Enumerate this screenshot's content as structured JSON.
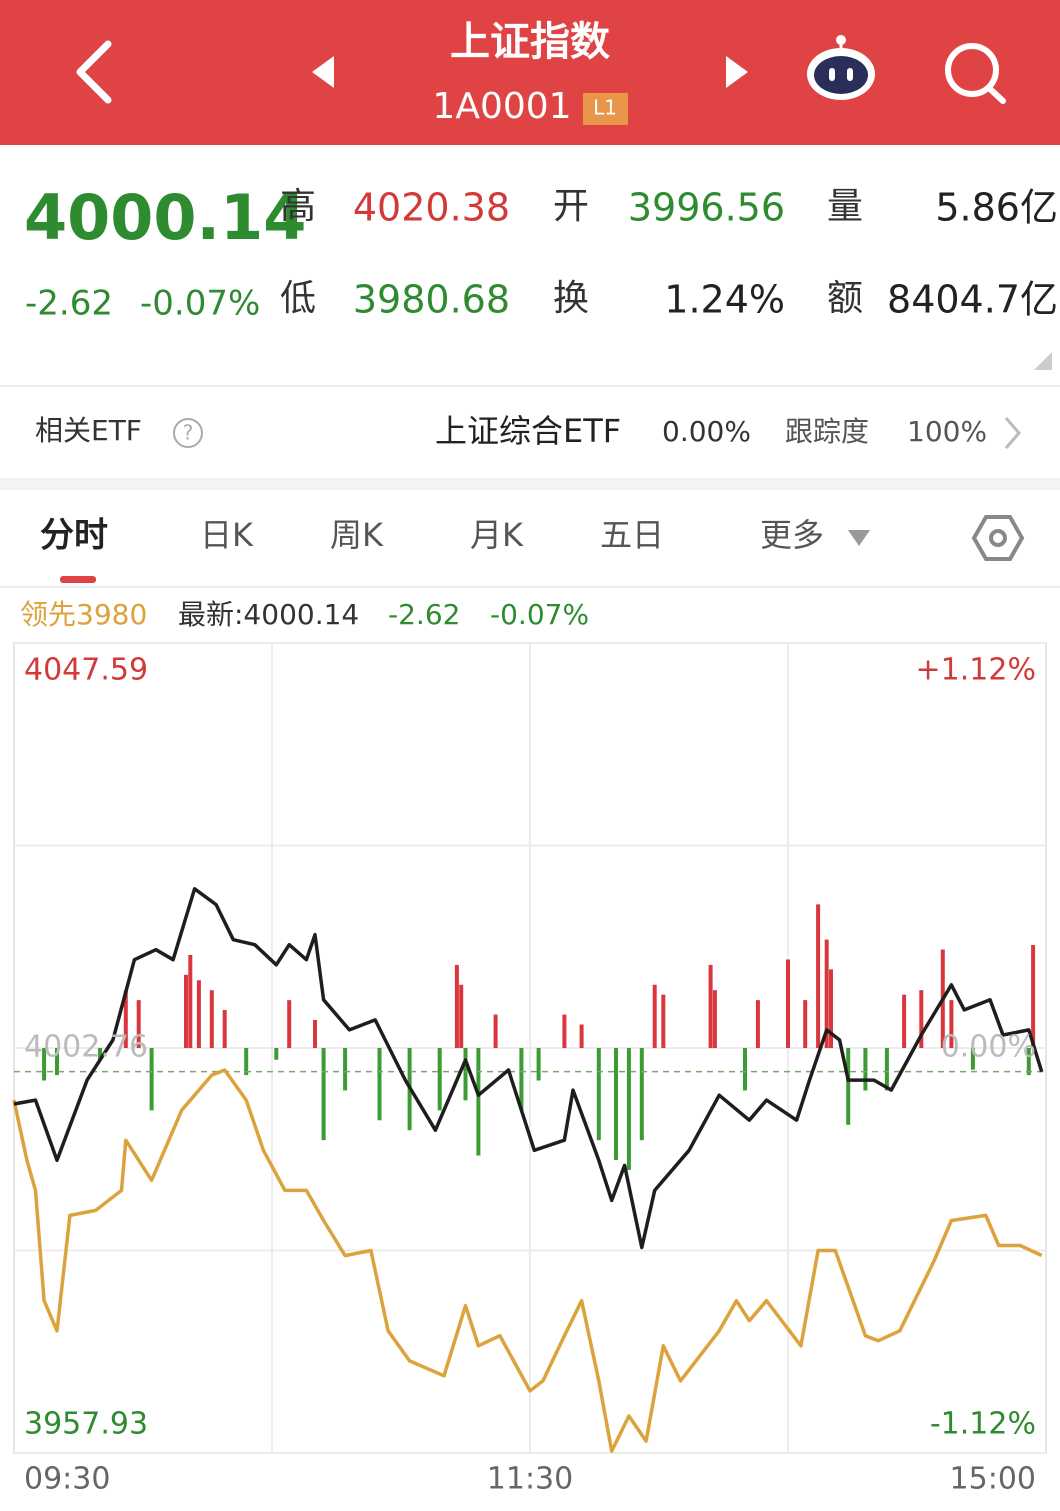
{
  "header": {
    "title": "上证指数",
    "code": "1A0001",
    "badge": "L1"
  },
  "quote": {
    "price": "4000.14",
    "change": "-2.62",
    "change_pct": "-0.07%",
    "fields": [
      {
        "label": "高",
        "value": "4020.38"
      },
      {
        "label": "开",
        "value": "3996.56"
      },
      {
        "label": "量",
        "value": "5.86亿"
      },
      {
        "label": "低",
        "value": "3980.68"
      },
      {
        "label": "换",
        "value": "1.24%"
      },
      {
        "label": "额",
        "value": "8404.7亿"
      }
    ]
  },
  "etf": {
    "label": "相关ETF",
    "help": "?",
    "name": "上证综合ETF",
    "pct": "0.00%",
    "track_label": "跟踪度",
    "track": "100%"
  },
  "tabs": [
    "分时",
    "日K",
    "周K",
    "月K",
    "五日",
    "更多"
  ],
  "chart_data": {
    "type": "line",
    "legend": [
      "领先3980",
      "最新:4000.14",
      "-2.62",
      "-0.07%"
    ],
    "xlim": [
      0,
      240
    ],
    "xticks": [
      {
        "value": 0,
        "label": "09:30"
      },
      {
        "value": 120,
        "label": "11:30"
      },
      {
        "value": 240,
        "label": "15:00"
      }
    ],
    "xgrid": [
      60,
      120,
      180
    ],
    "ylim": [
      3957.93,
      4047.59
    ],
    "yticks": [
      4047.59,
      4002.76,
      3957.93
    ],
    "y2lim": [
      -1.12,
      1.12
    ],
    "y2ticks": [
      {
        "value": 1.12,
        "label": "+1.12%"
      },
      {
        "value": 0,
        "label": "0.00%"
      },
      {
        "value": -1.12,
        "label": "-1.12%"
      }
    ],
    "series": [
      {
        "color": "#1e1e1e",
        "x": [
          0,
          5,
          10,
          17,
          23,
          28,
          33,
          37,
          42,
          47,
          51,
          56,
          61,
          64,
          68,
          70,
          72,
          78,
          84,
          91,
          98,
          105,
          108,
          115,
          121,
          128,
          130,
          136,
          139,
          142,
          146,
          149,
          157,
          164,
          171,
          175,
          182,
          185,
          189,
          192,
          194,
          200,
          204,
          211,
          218,
          221,
          227,
          230,
          236,
          239
        ],
        "values": [
          3996.56,
          3996.99,
          3990.33,
          3999.21,
          4003.65,
          4012.53,
          4013.64,
          4012.53,
          4020.38,
          4018.63,
          4014.75,
          4014.19,
          4011.97,
          4014.19,
          4012.53,
          4015.3,
          4008.09,
          4004.76,
          4005.87,
          3999.21,
          3993.66,
          4001.43,
          3997.54,
          4000.32,
          3991.44,
          3992.55,
          3998.1,
          3990.33,
          3985.89,
          3989.77,
          3980.68,
          3987.0,
          3991.44,
          3997.54,
          3994.77,
          3996.99,
          3994.77,
          3999.21,
          4004.76,
          4003.65,
          3999.21,
          3999.21,
          3998.1,
          4004.2,
          4009.75,
          4006.98,
          4008.09,
          4004.2,
          4004.76,
          4000.14
        ]
      },
      {
        "color": "#dca23c",
        "x": [
          0,
          3,
          5,
          7,
          10,
          13,
          19,
          25,
          26,
          32,
          39,
          46,
          49,
          54,
          58,
          63,
          68,
          72,
          77,
          83,
          87,
          92,
          100,
          105,
          108,
          113,
          120,
          123,
          128,
          132,
          136,
          139,
          143,
          147,
          151,
          155,
          164,
          168,
          171,
          175,
          183,
          187,
          191,
          198,
          201,
          206,
          214,
          218,
          226,
          229,
          234,
          239
        ],
        "values": [
          3996.99,
          3990.33,
          3987.0,
          3974.79,
          3971.46,
          3984.23,
          3984.78,
          3987.0,
          3992.55,
          3988.11,
          3995.88,
          3999.76,
          4000.32,
          3996.99,
          3991.44,
          3987.0,
          3987.0,
          3983.67,
          3979.78,
          3980.34,
          3971.46,
          3968.13,
          3966.47,
          3974.24,
          3969.8,
          3970.91,
          3964.8,
          3965.91,
          3970.91,
          3974.79,
          3965.91,
          3958.14,
          3962.03,
          3959.25,
          3969.8,
          3965.91,
          3971.46,
          3974.79,
          3972.57,
          3974.79,
          3969.8,
          3980.34,
          3980.34,
          3970.91,
          3970.35,
          3971.46,
          3979.23,
          3983.67,
          3984.23,
          3980.9,
          3980.9,
          3979.79
        ]
      }
    ],
    "bars": {
      "up_color": "#d9363e",
      "down_color": "#3c9b32",
      "x": [
        7,
        10,
        20,
        26,
        29,
        32,
        40,
        41,
        43,
        46,
        49,
        54,
        61,
        64,
        70,
        72,
        77,
        85,
        92,
        99,
        103,
        104,
        105,
        108,
        112,
        118,
        122,
        128,
        132,
        136,
        140,
        143,
        146,
        149,
        151,
        162,
        163,
        170,
        173,
        180,
        184,
        187,
        189,
        190,
        194,
        198,
        203,
        207,
        211,
        216,
        218,
        223,
        236,
        237
      ],
      "values": [
        -3.6,
        -3.0,
        -1.3,
        6.4,
        5.3,
        -6.9,
        8.1,
        10.3,
        7.5,
        6.4,
        4.2,
        -3.0,
        -1.3,
        5.3,
        3.1,
        -10.2,
        -4.7,
        -8.0,
        -9.1,
        -6.9,
        9.2,
        7.0,
        -5.8,
        -11.9,
        3.7,
        -6.9,
        -3.6,
        3.7,
        2.6,
        -10.2,
        -12.4,
        -13.5,
        -10.2,
        7.0,
        5.9,
        9.2,
        6.4,
        -4.7,
        5.3,
        9.8,
        5.3,
        15.9,
        12.0,
        8.7,
        -8.5,
        -4.7,
        -4.7,
        5.9,
        6.4,
        10.9,
        5.3,
        -2.4,
        -3.0,
        11.4
      ]
    }
  }
}
